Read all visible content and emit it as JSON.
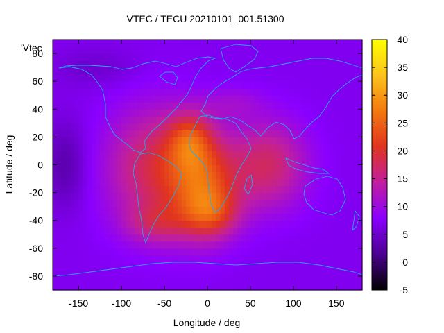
{
  "chart_data": {
    "type": "heatmap",
    "title": "VTEC / TECU 20210101_001.51300",
    "xlabel": "Longitude / deg",
    "ylabel": "Latitude / deg",
    "key_label": "'Vtec_",
    "xlim": [
      -180,
      180
    ],
    "ylim": [
      -90,
      90
    ],
    "x_ticks": [
      -150,
      -100,
      -50,
      0,
      50,
      100,
      150
    ],
    "y_ticks": [
      -80,
      -60,
      -40,
      -20,
      0,
      20,
      40,
      60,
      80
    ],
    "colorbar": {
      "range": [
        -5,
        40
      ],
      "ticks": [
        -5,
        0,
        5,
        10,
        15,
        20,
        25,
        30,
        35,
        40
      ],
      "palette": [
        "#000000",
        "#4b0090",
        "#8a00ff",
        "#c01f9f",
        "#e0331f",
        "#f3780f",
        "#fbc31c",
        "#ffff00"
      ]
    },
    "background_value": 7,
    "blobs": [
      {
        "lon": -165,
        "lat": 0,
        "slon": 18,
        "slat": 22,
        "amp": -4
      },
      {
        "lon": -130,
        "lat": 70,
        "slon": 35,
        "slat": 10,
        "amp": -2
      },
      {
        "lon": -60,
        "lat": -2,
        "slon": 40,
        "slat": 30,
        "amp": 11
      },
      {
        "lon": -20,
        "lat": 18,
        "slon": 18,
        "slat": 14,
        "amp": 10
      },
      {
        "lon": -5,
        "lat": -15,
        "slon": 28,
        "slat": 24,
        "amp": 14
      },
      {
        "lon": 5,
        "lat": -35,
        "slon": 22,
        "slat": 12,
        "amp": 8
      },
      {
        "lon": 70,
        "lat": 0,
        "slon": 32,
        "slat": 22,
        "amp": 10
      },
      {
        "lon": -60,
        "lat": -42,
        "slon": 25,
        "slat": 10,
        "amp": 6
      },
      {
        "lon": 30,
        "lat": 45,
        "slon": 25,
        "slat": 8,
        "amp": 3
      }
    ]
  }
}
